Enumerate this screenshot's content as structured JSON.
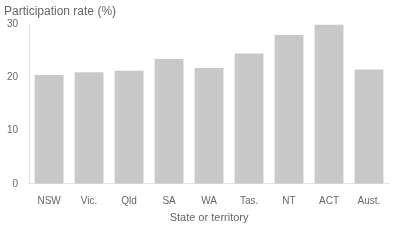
{
  "chart_data": {
    "type": "bar",
    "title": "Participation rate (%)",
    "xlabel": "State or territory",
    "categories": [
      "NSW",
      "Vic.",
      "Qld",
      "SA",
      "WA",
      "Tas.",
      "NT",
      "ACT",
      "Aust."
    ],
    "values": [
      20.5,
      21.0,
      21.3,
      23.5,
      21.8,
      24.5,
      28.0,
      30.0,
      21.5
    ],
    "color": "#c8c8c8",
    "ylim": [
      0,
      30
    ],
    "yticks": [
      0,
      10,
      20,
      30
    ],
    "grid": false
  }
}
